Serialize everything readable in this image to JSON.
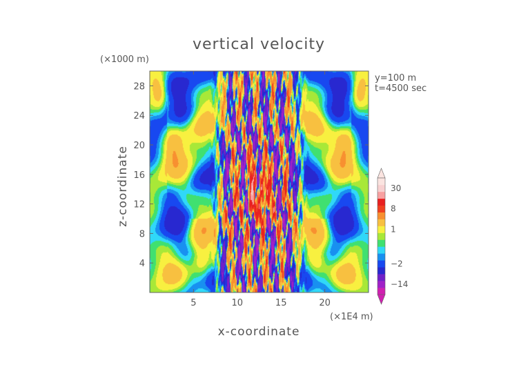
{
  "chart_data": {
    "type": "heatmap",
    "title": "vertical velocity",
    "xlabel": "x-coordinate",
    "ylabel": "z-coordinate",
    "x_unit_label": "(×1E4 m)",
    "y_unit_label": "(×1000 m)",
    "annotations": [
      "y=100 m",
      "t=4500 sec"
    ],
    "xlim": [
      0,
      25
    ],
    "ylim": [
      0,
      30
    ],
    "x_ticks": [
      5,
      10,
      15,
      20
    ],
    "y_ticks": [
      4,
      8,
      12,
      16,
      20,
      24,
      28
    ],
    "colorbar": {
      "labels": [
        {
          "text": "30",
          "value": 30
        },
        {
          "text": "8",
          "value": 8
        },
        {
          "text": "1",
          "value": 1
        },
        {
          "text": "−2",
          "value": -2
        },
        {
          "text": "−14",
          "value": -14
        }
      ],
      "levels": [
        {
          "value": -20,
          "color": "#d020b0"
        },
        {
          "value": -14,
          "color": "#a020c8"
        },
        {
          "value": -8,
          "color": "#7020c8"
        },
        {
          "value": -4,
          "color": "#2828d0"
        },
        {
          "value": -2,
          "color": "#1848f0"
        },
        {
          "value": -1,
          "color": "#1890f0"
        },
        {
          "value": -0.5,
          "color": "#30d8f8"
        },
        {
          "value": 0,
          "color": "#40e070"
        },
        {
          "value": 0.5,
          "color": "#a8e838"
        },
        {
          "value": 1,
          "color": "#f8f040"
        },
        {
          "value": 2,
          "color": "#f8c040"
        },
        {
          "value": 4,
          "color": "#f89030"
        },
        {
          "value": 8,
          "color": "#f04020"
        },
        {
          "value": 12,
          "color": "#e82020"
        },
        {
          "value": 20,
          "color": "#f8a0a0"
        },
        {
          "value": 30,
          "color": "#f8d0d0"
        },
        {
          "value": 40,
          "color": "#fbe4e0"
        }
      ]
    }
  }
}
